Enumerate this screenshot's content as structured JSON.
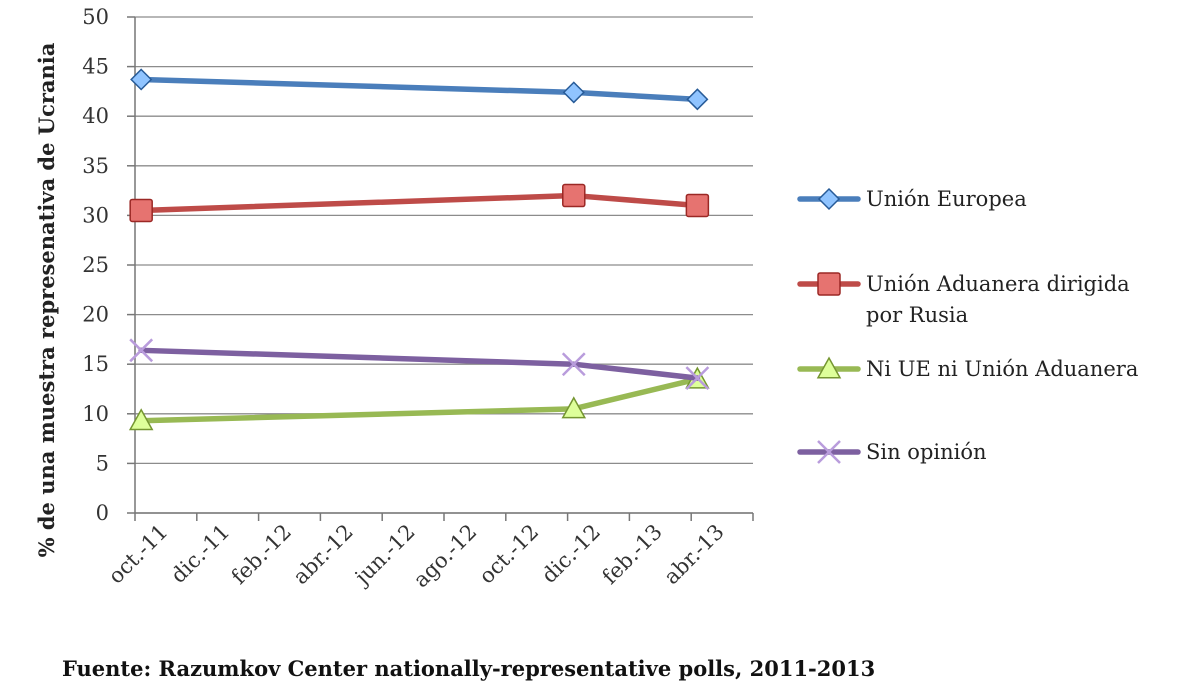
{
  "chart_data": {
    "type": "line",
    "ylabel": "% de una muestra represenativa de Ucrania",
    "ylim": [
      0,
      50
    ],
    "yticks": [
      "0",
      "5",
      "10",
      "15",
      "20",
      "25",
      "30",
      "35",
      "40",
      "45",
      "50"
    ],
    "categories": [
      "oct.-11",
      "dic.-11",
      "feb.-12",
      "abr.-12",
      "jun.-12",
      "ago.-12",
      "oct.-12",
      "dic.-12",
      "feb.-13",
      "abr.-13"
    ],
    "grid": true,
    "legend_position": "right",
    "series": [
      {
        "name": "Unión Europea",
        "color": "#4a7ebb",
        "marker": "diamond",
        "x": [
          "oct.-11",
          "dic.-12",
          "abr.-13"
        ],
        "values": [
          43.7,
          42.4,
          41.7
        ]
      },
      {
        "name": "Unión Aduanera dirigida por Rusia",
        "color": "#be4b48",
        "marker": "square",
        "x": [
          "oct.-11",
          "dic.-12",
          "abr.-13"
        ],
        "values": [
          30.5,
          32.0,
          31.0
        ]
      },
      {
        "name": "Ni UE ni Unión Aduanera",
        "color": "#98b954",
        "marker": "triangle",
        "x": [
          "oct.-11",
          "dic.-12",
          "abr.-13"
        ],
        "values": [
          9.3,
          10.5,
          13.5
        ]
      },
      {
        "name": "Sin opinión",
        "color": "#7d60a0",
        "marker": "x",
        "x": [
          "oct.-11",
          "dic.-12",
          "abr.-13"
        ],
        "values": [
          16.4,
          15.0,
          13.6
        ]
      }
    ]
  },
  "source_note": "Fuente:  Razumkov  Center  nationally-representative  polls, 2011-2013"
}
